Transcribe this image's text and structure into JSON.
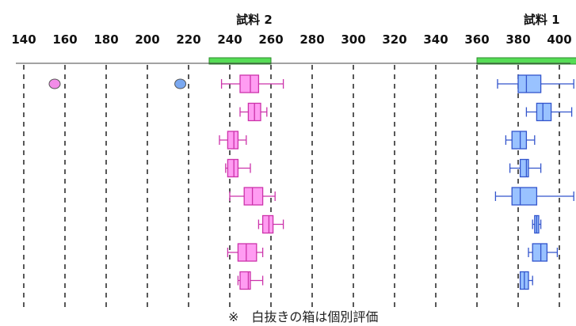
{
  "chart_data": {
    "type": "boxplot",
    "xlim": [
      130,
      410
    ],
    "x_ticks": [
      140,
      160,
      180,
      200,
      220,
      240,
      260,
      280,
      300,
      320,
      340,
      360,
      380,
      400
    ],
    "grid": "vertical dashed",
    "samples": [
      {
        "name": "試料 2",
        "range": [
          230,
          260
        ],
        "color": "#55dd55"
      },
      {
        "name": "試料 1",
        "range": [
          360,
          409
        ],
        "color": "#55dd55"
      }
    ],
    "outliers": [
      {
        "x": 155,
        "row": 1,
        "color": "#f28ce8"
      },
      {
        "x": 216,
        "row": 1,
        "color": "#7aa8f0"
      }
    ],
    "series": [
      {
        "name": "",
        "color": "#ff9cf2",
        "stroke": "#cc33aa",
        "boxes": [
          {
            "row": 1,
            "min": 236,
            "q1": 245,
            "median": 250,
            "q3": 254,
            "max": 266
          },
          {
            "row": 2,
            "min": 245,
            "q1": 249,
            "median": 252,
            "q3": 255,
            "max": 258
          },
          {
            "row": 3,
            "min": 235,
            "q1": 239,
            "median": 242,
            "q3": 244,
            "max": 248
          },
          {
            "row": 4,
            "min": 238,
            "q1": 239,
            "median": 242,
            "q3": 244,
            "max": 250
          },
          {
            "row": 5,
            "min": 240,
            "q1": 247,
            "median": 251,
            "q3": 256,
            "max": 262
          },
          {
            "row": 6,
            "min": 254,
            "q1": 256,
            "median": 259,
            "q3": 261,
            "max": 266
          },
          {
            "row": 7,
            "min": 239,
            "q1": 244,
            "median": 248,
            "q3": 253,
            "max": 256
          },
          {
            "row": 8,
            "min": 244,
            "q1": 245,
            "median": 249,
            "q3": 250,
            "max": 256
          }
        ]
      },
      {
        "name": "",
        "color": "#99c2ff",
        "stroke": "#3355cc",
        "boxes": [
          {
            "row": 1,
            "min": 370,
            "q1": 380,
            "median": 384,
            "q3": 391,
            "max": 407
          },
          {
            "row": 2,
            "min": 384,
            "q1": 389,
            "median": 392,
            "q3": 396,
            "max": 406
          },
          {
            "row": 3,
            "min": 374,
            "q1": 377,
            "median": 381,
            "q3": 384,
            "max": 388
          },
          {
            "row": 4,
            "min": 376,
            "q1": 381,
            "median": 384,
            "q3": 385,
            "max": 391
          },
          {
            "row": 5,
            "min": 369,
            "q1": 377,
            "median": 381,
            "q3": 389,
            "max": 407
          },
          {
            "row": 6,
            "min": 387,
            "q1": 388,
            "median": 389,
            "q3": 390,
            "max": 391
          },
          {
            "row": 7,
            "min": 385,
            "q1": 387,
            "median": 391,
            "q3": 394,
            "max": 399
          },
          {
            "row": 8,
            "min": 381,
            "q1": 381,
            "median": 383,
            "q3": 385,
            "max": 387
          }
        ]
      }
    ],
    "footnote": "※　白抜きの箱は個別評価"
  }
}
